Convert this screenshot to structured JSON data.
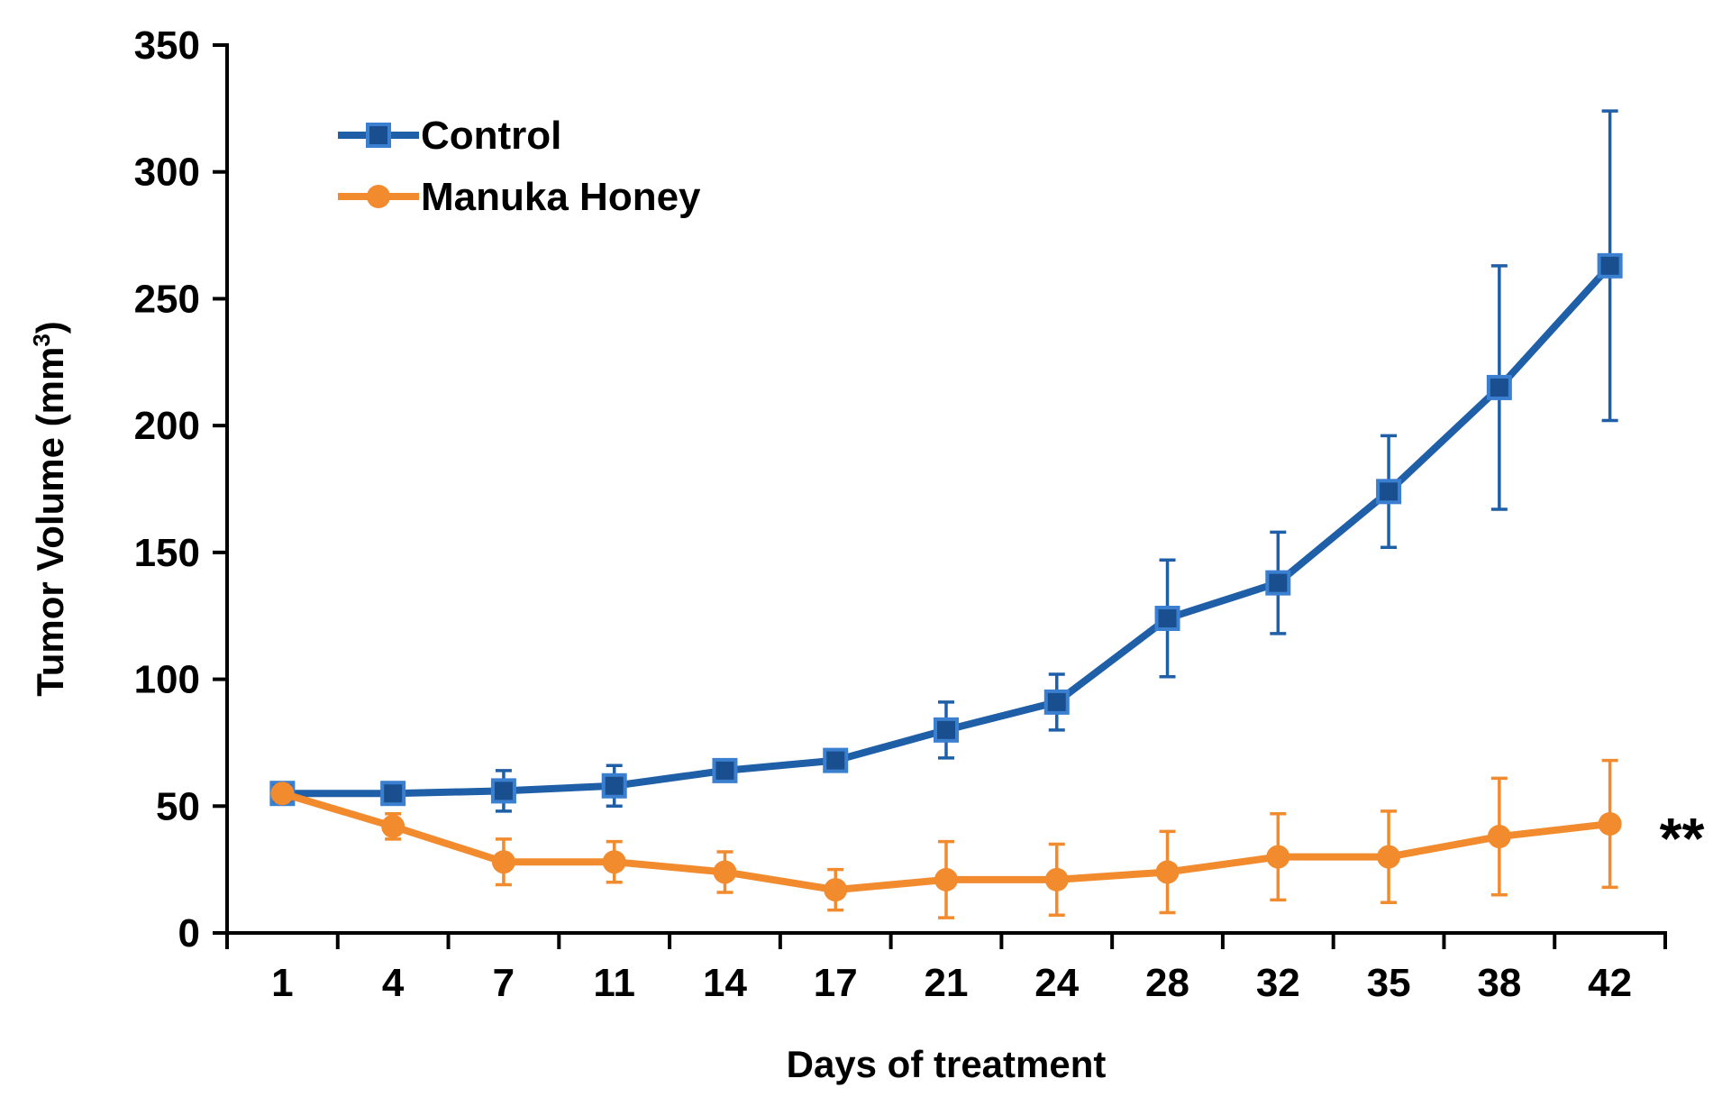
{
  "chart_data": {
    "type": "line",
    "xlabel": "Days of treatment",
    "ylabel": "Tumor Volume (mm",
    "ylabel_superscript": "3",
    "ylabel_suffix": ")",
    "ylim": [
      0,
      350
    ],
    "yticks": [
      0,
      50,
      100,
      150,
      200,
      250,
      300,
      350
    ],
    "categories": [
      "1",
      "4",
      "7",
      "11",
      "14",
      "17",
      "21",
      "24",
      "28",
      "32",
      "35",
      "38",
      "42"
    ],
    "grid": false,
    "legend_position": "top-left",
    "series": [
      {
        "name": "Control",
        "color": "#1f5fa8",
        "marker": "square",
        "values": [
          55,
          55,
          56,
          58,
          64,
          68,
          80,
          91,
          124,
          138,
          174,
          215,
          263
        ],
        "error": [
          0,
          0,
          8,
          8,
          0,
          0,
          11,
          11,
          23,
          20,
          22,
          48,
          61
        ]
      },
      {
        "name": "Manuka Honey",
        "color": "#f28a2e",
        "marker": "circle",
        "values": [
          55,
          42,
          28,
          28,
          24,
          17,
          21,
          21,
          24,
          30,
          30,
          38,
          43
        ],
        "error": [
          0,
          5,
          9,
          8,
          8,
          8,
          15,
          14,
          16,
          17,
          18,
          23,
          25
        ]
      }
    ],
    "annotations": [
      {
        "text": "**",
        "series": "Manuka Honey",
        "category": "42"
      }
    ]
  }
}
